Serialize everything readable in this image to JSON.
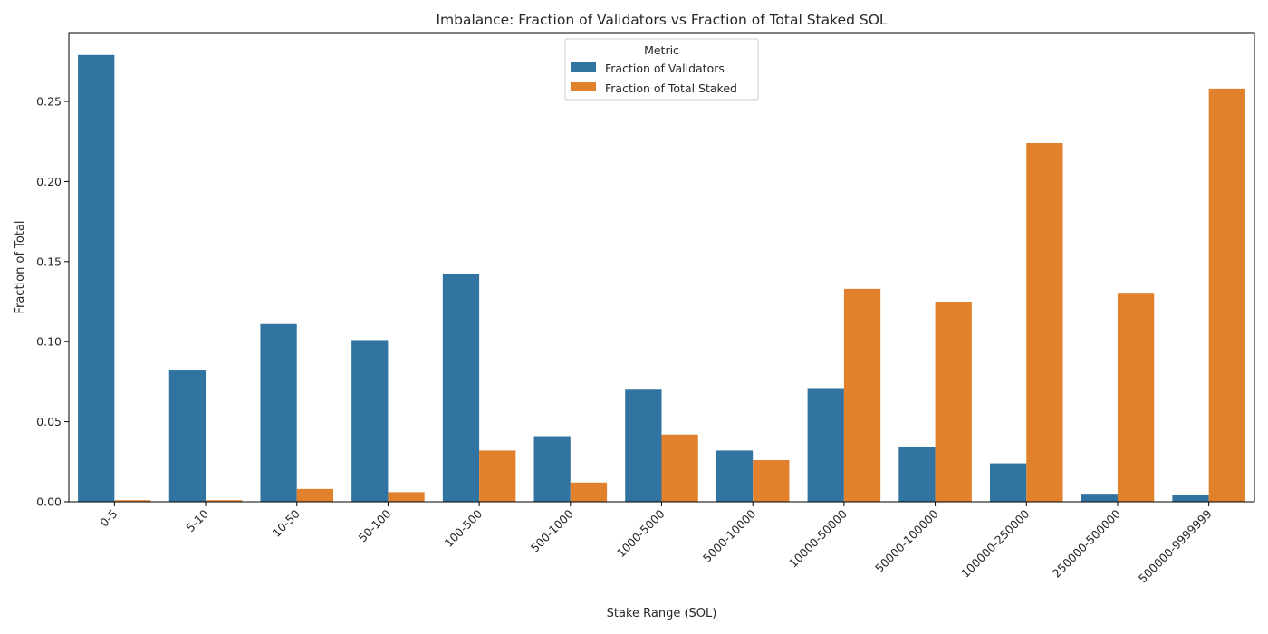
{
  "chart_data": {
    "type": "bar",
    "title": "Imbalance: Fraction of Validators vs Fraction of Total Staked SOL",
    "xlabel": "Stake Range (SOL)",
    "ylabel": "Fraction of Total",
    "ylim": [
      0,
      0.293
    ],
    "yticks": [
      "0.00",
      "0.05",
      "0.10",
      "0.15",
      "0.20",
      "0.25"
    ],
    "grid": false,
    "legend": {
      "title": "Metric",
      "placement": "upper center"
    },
    "categories": [
      "0-5",
      "5-10",
      "10-50",
      "50-100",
      "100-500",
      "500-1000",
      "1000-5000",
      "5000-10000",
      "10000-50000",
      "50000-100000",
      "100000-250000",
      "250000-500000",
      "500000-9999999"
    ],
    "series": [
      {
        "name": "Fraction of Validators",
        "color": "#3274a1",
        "values": [
          0.279,
          0.082,
          0.111,
          0.101,
          0.142,
          0.041,
          0.07,
          0.032,
          0.071,
          0.034,
          0.024,
          0.005,
          0.004
        ]
      },
      {
        "name": "Fraction of Total Staked",
        "color": "#e1812c",
        "values": [
          0.001,
          0.001,
          0.008,
          0.006,
          0.032,
          0.012,
          0.042,
          0.026,
          0.133,
          0.125,
          0.224,
          0.13,
          0.258
        ]
      }
    ]
  }
}
